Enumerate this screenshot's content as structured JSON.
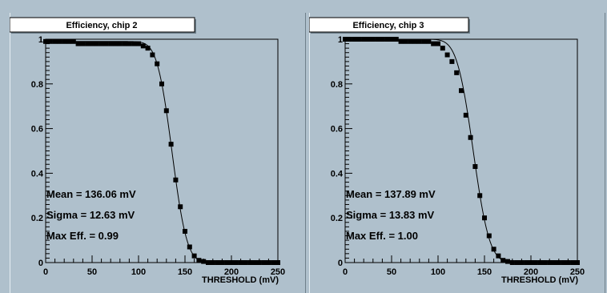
{
  "pads": [
    {
      "title": "Efficiency, chip 2",
      "stats": [
        "Mean = 136.06 mV",
        "Sigma = 12.63 mV",
        "Max Eff. = 0.99"
      ],
      "xlabel": "THRESHOLD (mV)"
    },
    {
      "title": "Efficiency, chip 3",
      "stats": [
        "Mean = 137.89 mV",
        "Sigma = 13.83 mV",
        "Max Eff. = 1.00"
      ],
      "xlabel": "THRESHOLD (mV)"
    }
  ],
  "chart_data": [
    {
      "type": "scatter",
      "title": "Efficiency, chip 2",
      "xlabel": "THRESHOLD (mV)",
      "ylabel": "",
      "xlim": [
        0,
        250
      ],
      "ylim": [
        0,
        1
      ],
      "x_ticks": [
        "0",
        "50",
        "100",
        "150",
        "200",
        "250"
      ],
      "y_ticks": [
        "0",
        "0.2",
        "0.4",
        "0.6",
        "0.8",
        "1"
      ],
      "fit": {
        "mean": 136.06,
        "sigma": 12.63,
        "max_eff": 0.99
      },
      "series": [
        {
          "x": [
            0,
            5,
            10,
            15,
            20,
            25,
            30,
            35,
            40,
            45,
            50,
            55,
            60,
            65,
            70,
            75,
            80,
            85,
            90,
            95,
            100,
            105,
            110,
            115,
            120,
            125,
            130,
            135,
            140,
            145,
            150,
            155,
            160,
            165,
            170,
            175,
            180,
            185,
            190,
            195,
            200,
            205,
            210,
            215,
            220,
            225,
            230,
            235,
            240,
            245,
            250
          ],
          "y": [
            0.99,
            0.99,
            0.99,
            0.99,
            0.99,
            0.99,
            0.99,
            0.98,
            0.98,
            0.98,
            0.98,
            0.98,
            0.98,
            0.98,
            0.98,
            0.98,
            0.98,
            0.98,
            0.98,
            0.98,
            0.98,
            0.97,
            0.96,
            0.93,
            0.89,
            0.8,
            0.68,
            0.53,
            0.37,
            0.25,
            0.14,
            0.07,
            0.03,
            0.01,
            0.005,
            0.0,
            0.0,
            0.0,
            0.0,
            0.0,
            0.0,
            0.0,
            0.0,
            0.0,
            0.0,
            0.0,
            0.0,
            0.0,
            0.0,
            0.0,
            0.0
          ]
        }
      ]
    },
    {
      "type": "scatter",
      "title": "Efficiency, chip 3",
      "xlabel": "THRESHOLD (mV)",
      "ylabel": "",
      "xlim": [
        0,
        250
      ],
      "ylim": [
        0,
        1
      ],
      "x_ticks": [
        "0",
        "50",
        "100",
        "150",
        "200",
        "250"
      ],
      "y_ticks": [
        "0",
        "0.2",
        "0.4",
        "0.6",
        "0.8",
        "1"
      ],
      "fit": {
        "mean": 137.89,
        "sigma": 13.83,
        "max_eff": 1.0
      },
      "series": [
        {
          "x": [
            0,
            5,
            10,
            15,
            20,
            25,
            30,
            35,
            40,
            45,
            50,
            55,
            60,
            65,
            70,
            75,
            80,
            85,
            90,
            95,
            100,
            105,
            110,
            115,
            120,
            125,
            130,
            135,
            140,
            145,
            150,
            155,
            160,
            165,
            170,
            175,
            180,
            185,
            190,
            195,
            200,
            205,
            210,
            215,
            220,
            225,
            230,
            235,
            240,
            245,
            250
          ],
          "y": [
            1.0,
            1.0,
            1.0,
            1.0,
            1.0,
            1.0,
            1.0,
            1.0,
            1.0,
            1.0,
            1.0,
            1.0,
            0.99,
            0.99,
            0.99,
            0.99,
            0.99,
            0.99,
            0.99,
            0.98,
            0.98,
            0.96,
            0.93,
            0.9,
            0.85,
            0.77,
            0.66,
            0.56,
            0.43,
            0.3,
            0.2,
            0.12,
            0.06,
            0.03,
            0.01,
            0.005,
            0.0,
            0.0,
            0.0,
            0.0,
            0.0,
            0.0,
            0.0,
            0.0,
            0.0,
            0.0,
            0.0,
            0.0,
            0.0,
            0.0,
            0.0
          ]
        }
      ]
    }
  ]
}
